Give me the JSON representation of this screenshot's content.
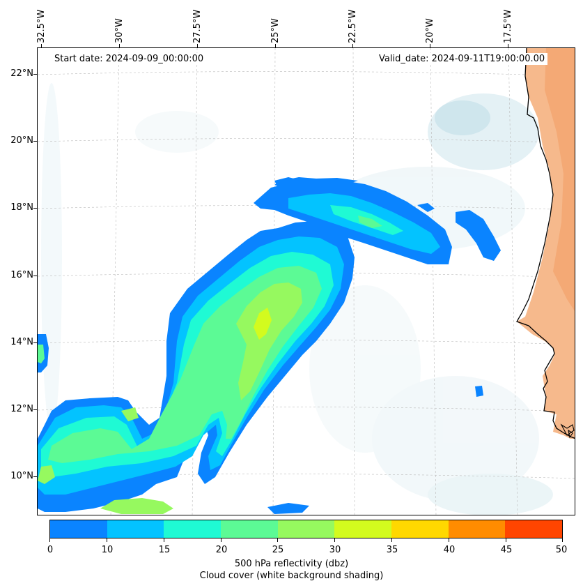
{
  "map": {
    "start_date_text": "Start date: 2024-09-09_00:00:00",
    "valid_date_text": "Valid_date: 2024-09-11T19:00:00.00",
    "lon_labels": [
      "32.5°W",
      "30°W",
      "27.5°W",
      "25°W",
      "22.5°W",
      "20°W",
      "17.5°W"
    ],
    "lat_labels": [
      "22°N",
      "20°N",
      "18°N",
      "16°N",
      "14°N",
      "12°N",
      "10°N"
    ],
    "lon_range": [
      "32.5°W",
      "15.5°W"
    ],
    "lat_range": [
      "9°N",
      "22.8°N"
    ],
    "gridlines": "dashed light gray"
  },
  "colorbar": {
    "ticks": [
      "0",
      "10",
      "15",
      "20",
      "25",
      "30",
      "35",
      "40",
      "45",
      "50"
    ],
    "colors": [
      "#0a84ff",
      "#03c3ff",
      "#1ffad4",
      "#5cfa95",
      "#96f95f",
      "#d3fb1e",
      "#ffd800",
      "#ff8c00",
      "#ff4500"
    ],
    "label_line1": "500 hPa reflectivity (dbz)",
    "label_line2": "Cloud cover (white background shading)"
  },
  "colors": {
    "land": "#f4a46e",
    "cloud_shading": "#dceef3",
    "coastline": "#000000"
  }
}
